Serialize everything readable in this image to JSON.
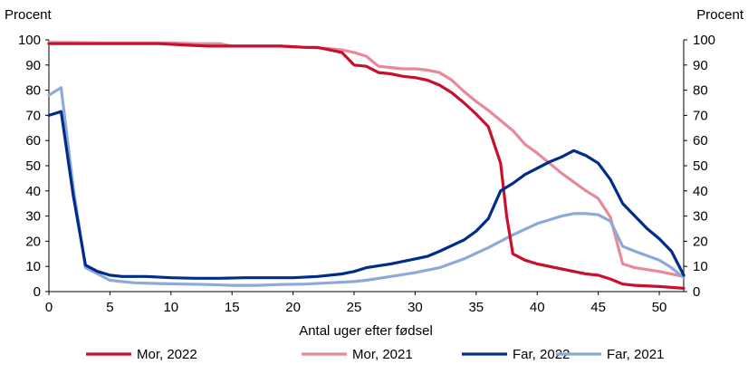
{
  "chart_data": {
    "type": "line",
    "ylabel_left": "Procent",
    "ylabel_right": "Procent",
    "xlabel": "Antal uger efter fødsel",
    "xlim": [
      0,
      52
    ],
    "ylim": [
      0,
      100
    ],
    "x_ticks": [
      0,
      5,
      10,
      15,
      20,
      25,
      30,
      35,
      40,
      45,
      50
    ],
    "y_ticks": [
      0,
      10,
      20,
      30,
      40,
      50,
      60,
      70,
      80,
      90,
      100
    ],
    "grid": false,
    "legend_position": "bottom",
    "series": [
      {
        "name": "Mor, 2022",
        "color": "#c8102e",
        "points": [
          [
            0,
            98.5
          ],
          [
            1,
            98.5
          ],
          [
            3,
            98.5
          ],
          [
            5,
            98.5
          ],
          [
            7,
            98.5
          ],
          [
            9,
            98.5
          ],
          [
            11,
            98
          ],
          [
            13,
            97.5
          ],
          [
            15,
            97.5
          ],
          [
            17,
            97.5
          ],
          [
            19,
            97.5
          ],
          [
            21,
            97
          ],
          [
            22,
            97
          ],
          [
            23,
            96
          ],
          [
            24,
            95
          ],
          [
            25,
            90
          ],
          [
            26,
            89.5
          ],
          [
            27,
            87
          ],
          [
            28,
            86.5
          ],
          [
            29,
            85.5
          ],
          [
            30,
            85
          ],
          [
            31,
            84
          ],
          [
            32,
            82
          ],
          [
            33,
            79
          ],
          [
            34,
            75
          ],
          [
            35,
            70.5
          ],
          [
            36,
            65.5
          ],
          [
            37,
            51
          ],
          [
            37.5,
            30
          ],
          [
            38,
            15
          ],
          [
            39,
            12.5
          ],
          [
            40,
            11
          ],
          [
            42,
            9
          ],
          [
            44,
            7
          ],
          [
            45,
            6.5
          ],
          [
            46,
            5
          ],
          [
            47,
            3
          ],
          [
            48,
            2.5
          ],
          [
            50,
            2
          ],
          [
            52,
            1.3
          ]
        ]
      },
      {
        "name": "Mor, 2021",
        "color": "#e8899a",
        "points": [
          [
            0,
            99
          ],
          [
            2,
            99
          ],
          [
            4,
            98.8
          ],
          [
            6,
            98.8
          ],
          [
            8,
            98.8
          ],
          [
            10,
            98.8
          ],
          [
            12,
            98.5
          ],
          [
            14,
            98.5
          ],
          [
            15,
            97.5
          ],
          [
            17,
            97.5
          ],
          [
            19,
            97.5
          ],
          [
            21,
            97
          ],
          [
            23,
            96.5
          ],
          [
            24,
            96
          ],
          [
            25,
            95
          ],
          [
            26,
            93.5
          ],
          [
            27,
            89.5
          ],
          [
            28,
            89
          ],
          [
            29,
            88.5
          ],
          [
            30,
            88.5
          ],
          [
            31,
            88
          ],
          [
            32,
            87
          ],
          [
            33,
            84
          ],
          [
            34,
            79.5
          ],
          [
            35,
            75.5
          ],
          [
            36,
            72
          ],
          [
            37,
            68
          ],
          [
            38,
            64
          ],
          [
            39,
            58.5
          ],
          [
            40,
            55
          ],
          [
            41,
            51
          ],
          [
            42,
            47
          ],
          [
            43,
            43.5
          ],
          [
            44,
            40
          ],
          [
            45,
            37
          ],
          [
            46,
            29.5
          ],
          [
            47,
            11
          ],
          [
            48,
            9.5
          ],
          [
            50,
            8
          ],
          [
            52,
            6
          ]
        ]
      },
      {
        "name": "Far, 2022",
        "color": "#002c8a",
        "points": [
          [
            0,
            70
          ],
          [
            1,
            71.5
          ],
          [
            2,
            38
          ],
          [
            3,
            10.5
          ],
          [
            4,
            8
          ],
          [
            5,
            6.5
          ],
          [
            6,
            6
          ],
          [
            7,
            6
          ],
          [
            8,
            6
          ],
          [
            10,
            5.5
          ],
          [
            12,
            5.3
          ],
          [
            14,
            5.3
          ],
          [
            16,
            5.5
          ],
          [
            18,
            5.5
          ],
          [
            20,
            5.5
          ],
          [
            22,
            6
          ],
          [
            24,
            7
          ],
          [
            25,
            8
          ],
          [
            26,
            9.5
          ],
          [
            28,
            11
          ],
          [
            30,
            13
          ],
          [
            31,
            14
          ],
          [
            32,
            16
          ],
          [
            34,
            20.5
          ],
          [
            35,
            24
          ],
          [
            36,
            29
          ],
          [
            37,
            40
          ],
          [
            38,
            43
          ],
          [
            39,
            46.5
          ],
          [
            40,
            49
          ],
          [
            41,
            51.5
          ],
          [
            42,
            53.5
          ],
          [
            43,
            56
          ],
          [
            44,
            54
          ],
          [
            45,
            51
          ],
          [
            46,
            44.5
          ],
          [
            47,
            35
          ],
          [
            48,
            30
          ],
          [
            49,
            25
          ],
          [
            50,
            21
          ],
          [
            51,
            16
          ],
          [
            52,
            6.5
          ]
        ]
      },
      {
        "name": "Far, 2021",
        "color": "#8ea9d8",
        "points": [
          [
            0,
            78
          ],
          [
            1,
            81
          ],
          [
            2,
            41
          ],
          [
            3,
            9.5
          ],
          [
            4,
            7
          ],
          [
            5,
            4.5
          ],
          [
            7,
            3.5
          ],
          [
            9,
            3.2
          ],
          [
            11,
            3
          ],
          [
            13,
            2.8
          ],
          [
            15,
            2.5
          ],
          [
            17,
            2.5
          ],
          [
            19,
            2.8
          ],
          [
            21,
            3
          ],
          [
            23,
            3.5
          ],
          [
            25,
            4
          ],
          [
            26,
            4.5
          ],
          [
            28,
            6
          ],
          [
            30,
            7.5
          ],
          [
            32,
            9.5
          ],
          [
            34,
            13
          ],
          [
            36,
            17.5
          ],
          [
            38,
            22.5
          ],
          [
            40,
            27
          ],
          [
            42,
            30
          ],
          [
            43,
            31
          ],
          [
            44,
            31
          ],
          [
            45,
            30.5
          ],
          [
            46,
            28
          ],
          [
            47,
            18
          ],
          [
            48,
            16
          ],
          [
            50,
            12.5
          ],
          [
            51,
            9.5
          ],
          [
            52,
            5.5
          ]
        ]
      }
    ]
  }
}
